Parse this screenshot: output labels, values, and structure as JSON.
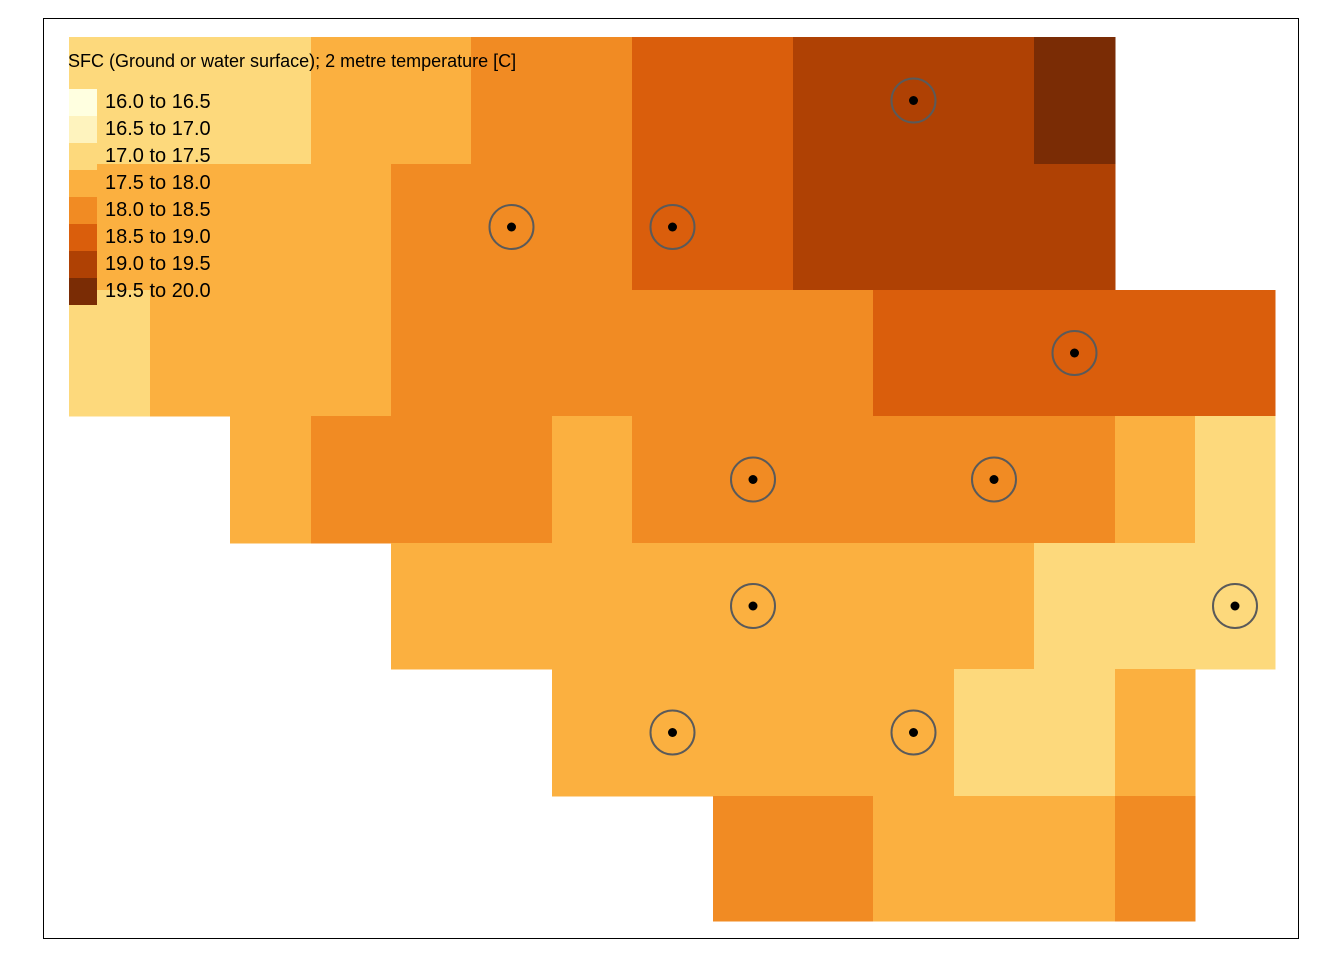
{
  "title": "SFC (Ground or water surface); 2 metre temperature [C]",
  "legend": [
    {
      "label": "16.0 to 16.5",
      "color": "#FFFFE0"
    },
    {
      "label": "16.5 to 17.0",
      "color": "#FEF3BE"
    },
    {
      "label": "17.0 to 17.5",
      "color": "#FDD97C"
    },
    {
      "label": "17.5 to 18.0",
      "color": "#FBB040"
    },
    {
      "label": "18.0 to 18.5",
      "color": "#F18B23"
    },
    {
      "label": "18.5 to 19.0",
      "color": "#DA5E0C"
    },
    {
      "label": "19.0 to 19.5",
      "color": "#AF4104"
    },
    {
      "label": "19.5 to 20.0",
      "color": "#7A2C05"
    }
  ],
  "grid": {
    "comment_levels": "Each cell is a legend class index (0-7); null = no data",
    "cells": [
      [
        2,
        2,
        2,
        3,
        3,
        4,
        4,
        5,
        5,
        6,
        6,
        6,
        7,
        null,
        null
      ],
      [
        3,
        3,
        3,
        3,
        4,
        4,
        4,
        5,
        5,
        6,
        6,
        6,
        6,
        null,
        null
      ],
      [
        2,
        3,
        3,
        3,
        4,
        4,
        4,
        4,
        4,
        4,
        5,
        5,
        5,
        5,
        5
      ],
      [
        null,
        null,
        3,
        4,
        4,
        4,
        3,
        4,
        4,
        4,
        4,
        4,
        4,
        3,
        2
      ],
      [
        null,
        null,
        null,
        null,
        3,
        3,
        3,
        3,
        3,
        3,
        3,
        3,
        2,
        2,
        2
      ],
      [
        null,
        null,
        null,
        null,
        null,
        null,
        3,
        3,
        3,
        3,
        3,
        2,
        2,
        3,
        null
      ],
      [
        null,
        null,
        null,
        null,
        null,
        null,
        null,
        null,
        4,
        4,
        3,
        3,
        3,
        4,
        null
      ]
    ]
  },
  "stations": [
    {
      "col": 10,
      "row": 0
    },
    {
      "col": 5,
      "row": 1
    },
    {
      "col": 7,
      "row": 1
    },
    {
      "col": 12,
      "row": 2
    },
    {
      "col": 8,
      "row": 3
    },
    {
      "col": 11,
      "row": 3
    },
    {
      "col": 8,
      "row": 4
    },
    {
      "col": 14,
      "row": 4
    },
    {
      "col": 7,
      "row": 5
    },
    {
      "col": 10,
      "row": 5
    }
  ],
  "station_marker": {
    "ring_color": "#5A5A5A",
    "dot_color": "#000000"
  }
}
